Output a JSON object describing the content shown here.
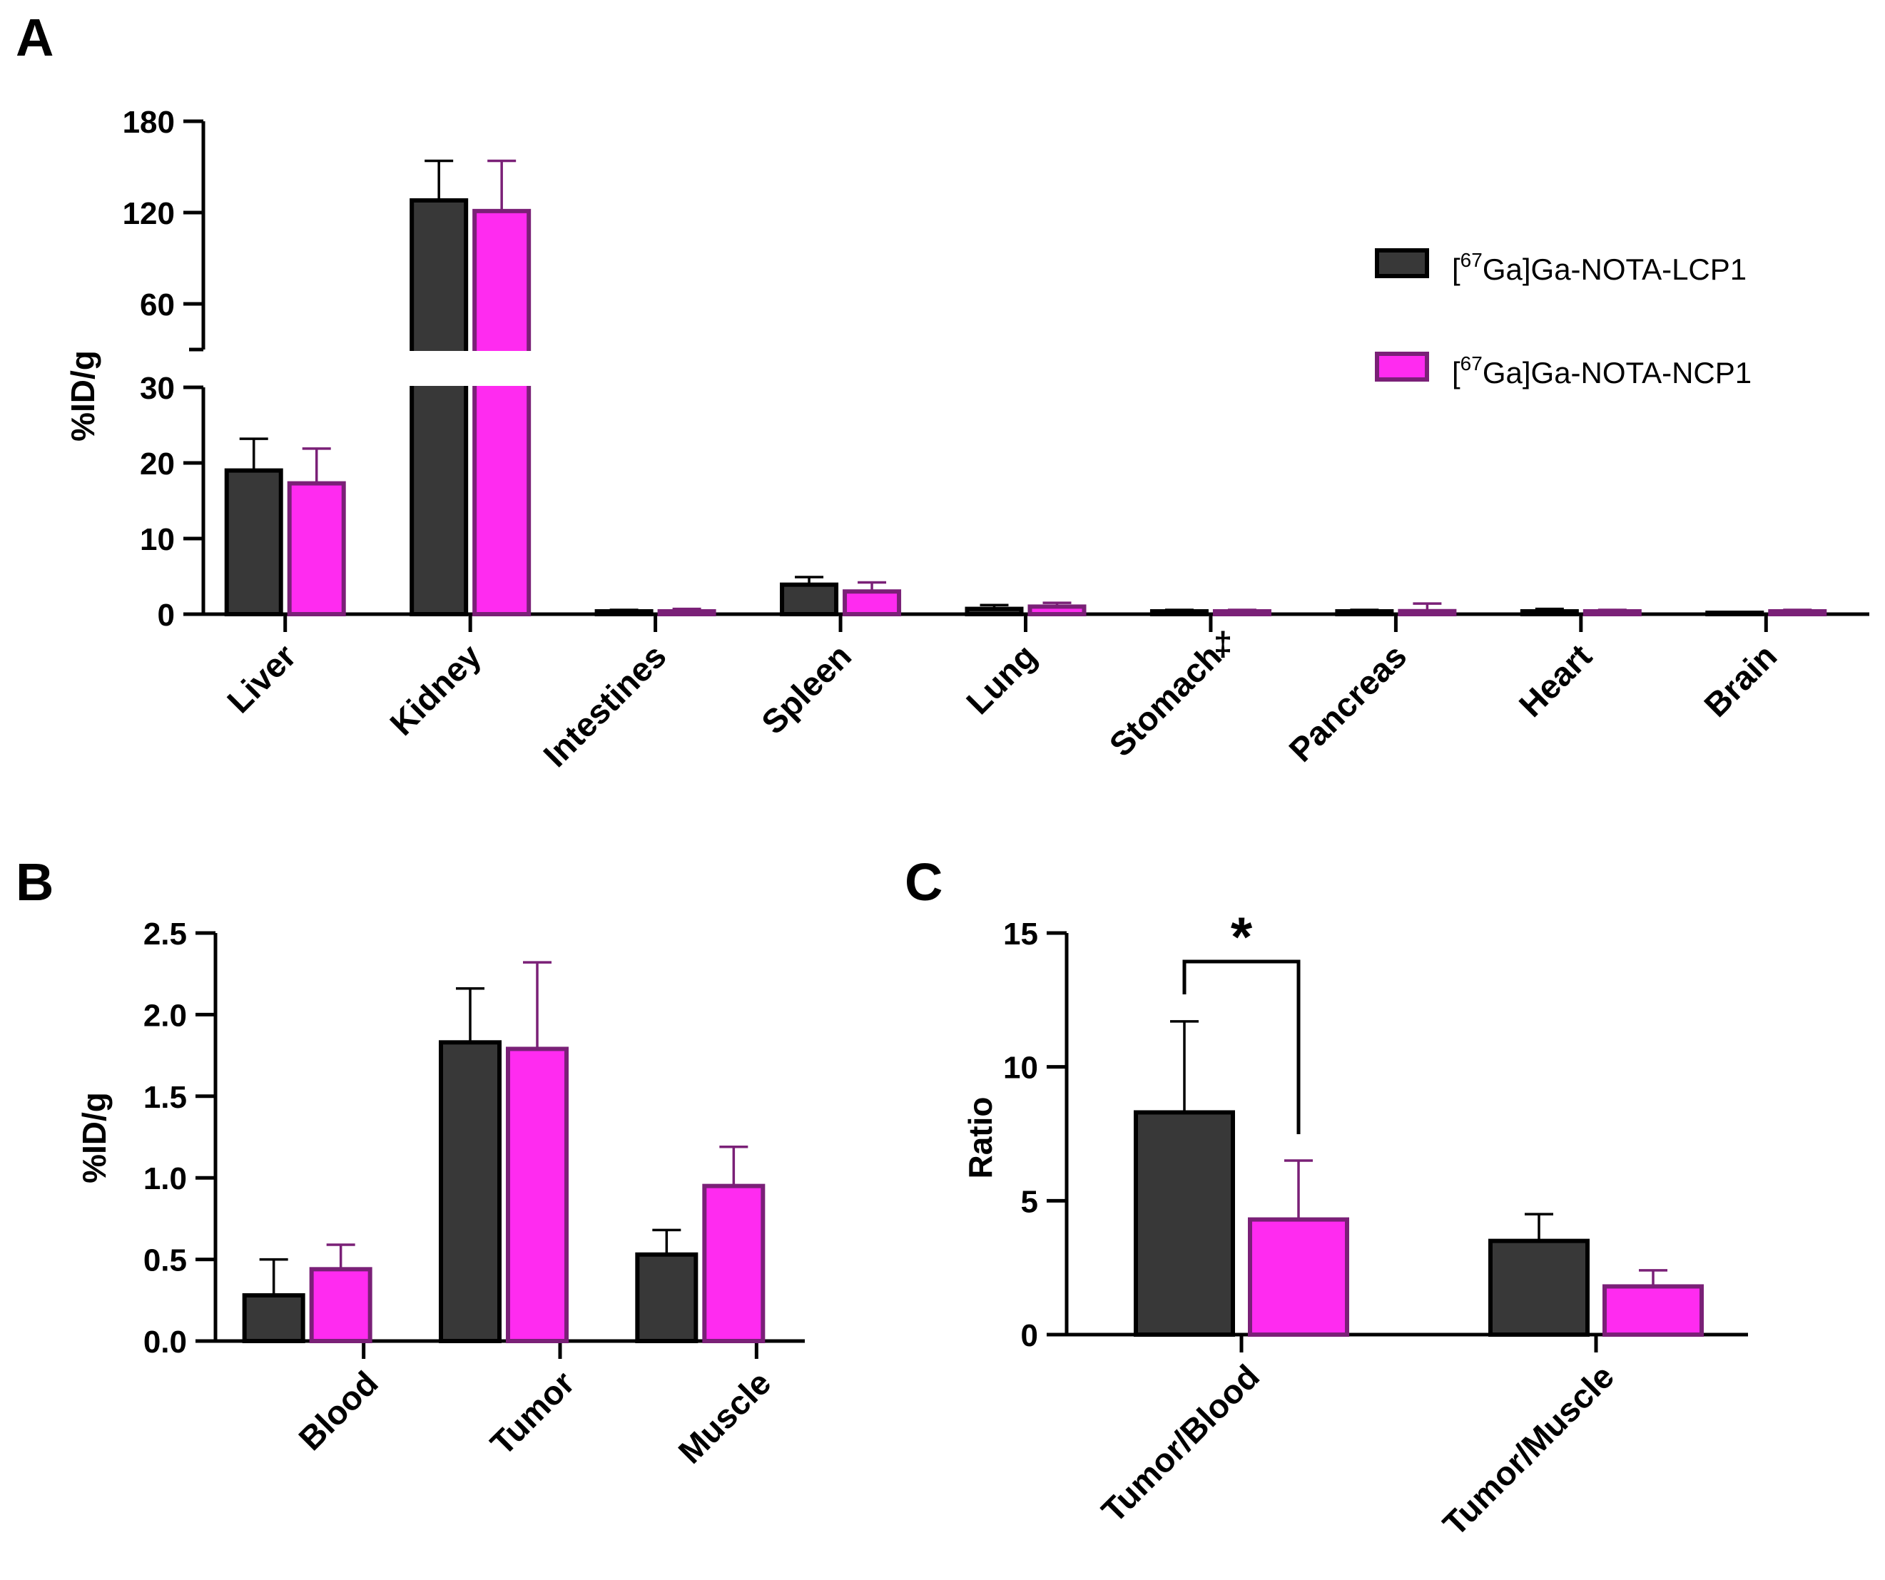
{
  "colors": {
    "lcp1_fill": "#383838",
    "lcp1_stroke": "#000000",
    "ncp1_fill": "#ff2bf0",
    "ncp1_stroke": "#7a2077",
    "axis": "#000000"
  },
  "legend": {
    "bracket_open": "[",
    "superscript": "67",
    "items": [
      {
        "rest": "Ga]Ga-NOTA-LCP1",
        "series": "lcp1"
      },
      {
        "rest": "Ga]Ga-NOTA-NCP1",
        "series": "ncp1"
      }
    ]
  },
  "chart_data": [
    {
      "panel": "A",
      "type": "bar",
      "ylabel": "%ID/g",
      "axis_break": true,
      "lower_segment": {
        "ylim": [
          0,
          30
        ],
        "ticks": [
          "0",
          "10",
          "20",
          "30"
        ]
      },
      "upper_segment": {
        "ylim": [
          30,
          180
        ],
        "ticks": [
          "60",
          "120",
          "180"
        ]
      },
      "categories": [
        "Liver",
        "Kidney",
        "Intestines",
        "Spleen",
        "Lung",
        "Stomach",
        "Pancreas",
        "Heart",
        "Brain"
      ],
      "category_marks": [
        "",
        "",
        "",
        "",
        "",
        "‡",
        "",
        "",
        ""
      ],
      "series": [
        {
          "name": "[67Ga]Ga-NOTA-LCP1",
          "key": "lcp1",
          "values": [
            19.0,
            128.0,
            0.3,
            3.9,
            0.7,
            0.1,
            0.2,
            0.3,
            0.0
          ],
          "errors": [
            4.2,
            26.0,
            0.2,
            1.0,
            0.5,
            0.05,
            0.2,
            0.4,
            0.0
          ]
        },
        {
          "name": "[67Ga]Ga-NOTA-NCP1",
          "key": "ncp1",
          "values": [
            17.3,
            121.0,
            0.3,
            3.0,
            1.0,
            0.1,
            0.4,
            0.2,
            0.1
          ],
          "errors": [
            4.6,
            33.0,
            0.4,
            1.2,
            0.5,
            0.05,
            1.0,
            0.3,
            0.05
          ]
        }
      ]
    },
    {
      "panel": "B",
      "type": "bar",
      "ylabel": "%ID/g",
      "ylim": [
        0,
        2.5
      ],
      "ticks": [
        "0.0",
        "0.5",
        "1.0",
        "1.5",
        "2.0",
        "2.5"
      ],
      "categories": [
        "Blood",
        "Tumor",
        "Muscle"
      ],
      "series": [
        {
          "name": "[67Ga]Ga-NOTA-LCP1",
          "key": "lcp1",
          "values": [
            0.28,
            1.83,
            0.53
          ],
          "errors": [
            0.22,
            0.33,
            0.15
          ]
        },
        {
          "name": "[67Ga]Ga-NOTA-NCP1",
          "key": "ncp1",
          "values": [
            0.44,
            1.79,
            0.95
          ],
          "errors": [
            0.15,
            0.53,
            0.24
          ]
        }
      ]
    },
    {
      "panel": "C",
      "type": "bar",
      "ylabel": "Ratio",
      "ylim": [
        0,
        15
      ],
      "ticks": [
        "0",
        "5",
        "10",
        "15"
      ],
      "categories": [
        "Tumor/Blood",
        "Tumor/Muscle"
      ],
      "significance": {
        "category": "Tumor/Blood",
        "label": "*"
      },
      "series": [
        {
          "name": "[67Ga]Ga-NOTA-LCP1",
          "key": "lcp1",
          "values": [
            8.3,
            3.5
          ],
          "errors": [
            3.4,
            1.0
          ]
        },
        {
          "name": "[67Ga]Ga-NOTA-NCP1",
          "key": "ncp1",
          "values": [
            4.3,
            1.8
          ],
          "errors": [
            2.2,
            0.6
          ]
        }
      ]
    }
  ]
}
